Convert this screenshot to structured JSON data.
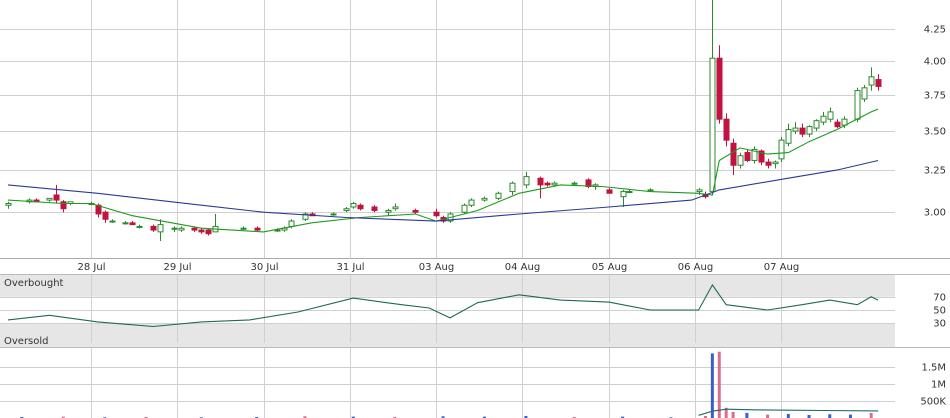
{
  "chart_data": [
    {
      "type": "candlestick",
      "x": [
        0,
        3,
        4,
        6,
        7,
        8,
        9,
        12,
        13,
        14,
        15,
        17,
        18,
        19,
        21,
        22,
        24,
        25,
        27,
        28,
        29,
        30,
        34,
        36,
        39,
        40,
        41,
        43,
        44,
        47,
        49,
        50,
        51,
        53,
        55,
        56,
        59,
        62,
        63,
        64,
        66,
        67,
        69,
        71,
        73,
        75,
        77,
        78,
        79,
        82,
        84,
        85,
        87,
        89,
        90,
        93,
        100,
        101,
        102,
        103,
        104,
        105,
        106,
        107,
        108,
        109,
        110,
        111,
        112,
        113,
        114,
        115,
        116,
        117,
        118,
        119,
        120,
        121,
        123,
        124,
        125,
        126
      ],
      "open": [
        3.04,
        3.06,
        3.07,
        3.07,
        3.1,
        3.06,
        3.05,
        3.05,
        3.04,
        3.0,
        2.95,
        2.94,
        2.94,
        2.92,
        2.92,
        2.89,
        2.91,
        2.9,
        2.91,
        2.9,
        2.9,
        2.89,
        2.91,
        2.91,
        2.9,
        2.9,
        2.92,
        2.96,
        2.99,
        2.99,
        3.01,
        3.03,
        3.04,
        3.03,
        3.0,
        3.02,
        3.01,
        3.0,
        2.97,
        2.95,
        3.0,
        3.04,
        3.07,
        3.08,
        3.12,
        3.16,
        3.2,
        3.17,
        3.16,
        3.17,
        3.19,
        3.15,
        3.13,
        3.09,
        3.12,
        3.13,
        3.12,
        3.1,
        3.12,
        4.02,
        3.58,
        3.42,
        3.28,
        3.36,
        3.31,
        3.37,
        3.3,
        3.29,
        3.32,
        3.42,
        3.5,
        3.52,
        3.48,
        3.52,
        3.56,
        3.58,
        3.56,
        3.54,
        3.58,
        3.72,
        3.82,
        3.86
      ],
      "high": [
        3.06,
        3.08,
        3.08,
        3.08,
        3.16,
        3.07,
        3.06,
        3.06,
        3.05,
        3.01,
        2.96,
        2.95,
        2.95,
        2.93,
        2.93,
        2.96,
        2.92,
        2.92,
        2.92,
        2.91,
        2.91,
        2.99,
        2.92,
        2.92,
        2.91,
        2.92,
        2.96,
        3.0,
        3.0,
        3.0,
        3.03,
        3.06,
        3.05,
        3.04,
        3.02,
        3.05,
        3.02,
        3.02,
        2.98,
        3.0,
        3.05,
        3.08,
        3.09,
        3.12,
        3.18,
        3.24,
        3.21,
        3.18,
        3.18,
        3.18,
        3.2,
        3.17,
        3.14,
        3.13,
        3.13,
        3.14,
        3.14,
        3.12,
        4.55,
        4.12,
        3.62,
        3.45,
        3.36,
        3.38,
        3.4,
        3.38,
        3.32,
        3.31,
        3.46,
        3.55,
        3.56,
        3.55,
        3.54,
        3.58,
        3.63,
        3.66,
        3.58,
        3.6,
        3.8,
        3.82,
        3.95,
        3.9
      ],
      "low": [
        3.02,
        3.05,
        3.06,
        3.06,
        3.05,
        3.0,
        3.04,
        3.04,
        2.97,
        2.94,
        2.94,
        2.93,
        2.93,
        2.91,
        2.89,
        2.84,
        2.89,
        2.89,
        2.89,
        2.88,
        2.87,
        2.89,
        2.9,
        2.89,
        2.89,
        2.89,
        2.91,
        2.95,
        2.98,
        2.98,
        3.0,
        3.02,
        3.01,
        3.0,
        2.98,
        3.01,
        2.99,
        2.97,
        2.94,
        2.94,
        2.99,
        3.03,
        3.06,
        3.07,
        3.1,
        3.14,
        3.08,
        3.15,
        3.15,
        3.16,
        3.14,
        3.13,
        3.11,
        3.03,
        3.11,
        3.12,
        3.1,
        3.08,
        3.1,
        3.55,
        3.4,
        3.22,
        3.26,
        3.3,
        3.29,
        3.28,
        3.26,
        3.26,
        3.3,
        3.4,
        3.48,
        3.46,
        3.46,
        3.5,
        3.54,
        3.56,
        3.52,
        3.52,
        3.56,
        3.7,
        3.78,
        3.78
      ],
      "close": [
        3.05,
        3.07,
        3.06,
        3.08,
        3.07,
        3.02,
        3.06,
        3.05,
        2.99,
        2.96,
        2.95,
        2.94,
        2.93,
        2.92,
        2.9,
        2.93,
        2.91,
        2.91,
        2.9,
        2.89,
        2.88,
        2.92,
        2.91,
        2.9,
        2.9,
        2.91,
        2.95,
        2.99,
        2.98,
        2.99,
        3.02,
        3.05,
        3.02,
        3.01,
        3.01,
        3.03,
        3.0,
        2.98,
        2.95,
        2.99,
        3.04,
        3.07,
        3.08,
        3.11,
        3.17,
        3.21,
        3.16,
        3.16,
        3.17,
        3.17,
        3.15,
        3.16,
        3.11,
        3.12,
        3.12,
        3.13,
        3.13,
        3.09,
        4.02,
        3.58,
        3.44,
        3.28,
        3.34,
        3.31,
        3.38,
        3.3,
        3.28,
        3.3,
        3.44,
        3.51,
        3.52,
        3.48,
        3.53,
        3.57,
        3.6,
        3.63,
        3.53,
        3.58,
        3.78,
        3.8,
        3.88,
        3.81
      ],
      "up_color": "#2b8a2b",
      "down_color": "#c2123f",
      "overlays": [
        {
          "type": "line",
          "color": "#1e9a1e",
          "x": [
            0,
            8,
            12,
            18,
            28,
            37,
            44,
            51,
            59,
            62,
            68,
            74,
            80,
            86,
            93,
            100,
            102,
            103,
            106,
            110,
            113,
            116,
            120,
            125,
            126
          ],
          "values": [
            3.07,
            3.05,
            3.05,
            2.98,
            2.91,
            2.89,
            2.94,
            2.97,
            2.99,
            2.95,
            3.01,
            3.11,
            3.16,
            3.15,
            3.12,
            3.11,
            3.1,
            3.31,
            3.39,
            3.35,
            3.36,
            3.43,
            3.51,
            3.63,
            3.65
          ]
        },
        {
          "type": "line",
          "color": "#2b3a98",
          "x": [
            0,
            13,
            28,
            37,
            49,
            62,
            74,
            87,
            99,
            103,
            113,
            120,
            126
          ],
          "values": [
            3.16,
            3.11,
            3.04,
            3.0,
            2.97,
            2.95,
            2.99,
            3.03,
            3.07,
            3.13,
            3.2,
            3.25,
            3.31
          ]
        }
      ],
      "xlim": [
        0,
        127
      ],
      "xticks": [
        {
          "value": 12,
          "label": "28 Jul"
        },
        {
          "value": 24.5,
          "label": "29 Jul"
        },
        {
          "value": 37,
          "label": "30 Jul"
        },
        {
          "value": 49.5,
          "label": "31 Jul"
        },
        {
          "value": 62,
          "label": "03 Aug"
        },
        {
          "value": 74.5,
          "label": "04 Aug"
        },
        {
          "value": 87,
          "label": "05 Aug"
        },
        {
          "value": 99.5,
          "label": "06 Aug"
        },
        {
          "value": 112,
          "label": "07 Aug"
        }
      ],
      "ylim": [
        2.75,
        4.49
      ],
      "log": true,
      "grid": true,
      "yticks": [
        {
          "value": 3,
          "label": "3.00"
        },
        3.25,
        {
          "value": 3.5,
          "label": "3.50"
        },
        3.75,
        {
          "value": 4,
          "label": "4.00"
        },
        4.25
      ]
    },
    {
      "type": "line",
      "overbought_label": "Overbought",
      "oversold_label": "Oversold",
      "overbought": 70,
      "oversold": 30,
      "band_color": "#e6e6e6",
      "color": "#1d6b4c",
      "x": [
        0,
        6,
        13,
        21,
        28,
        35,
        42,
        50,
        57,
        61,
        64,
        68,
        74,
        80,
        87,
        93,
        100,
        102,
        104,
        110,
        115,
        119,
        123,
        125,
        126
      ],
      "values": [
        35,
        42,
        32,
        25,
        32,
        35,
        47,
        68,
        58,
        53,
        38,
        61,
        73,
        65,
        62,
        50,
        50,
        88,
        58,
        50,
        58,
        65,
        58,
        70,
        65
      ],
      "xlim": [
        0,
        127
      ],
      "ylim": [
        0,
        100
      ],
      "yticks": [
        70,
        50,
        30
      ]
    },
    {
      "type": "bar",
      "x": [
        2,
        8,
        14,
        20,
        28,
        36,
        43,
        50,
        56,
        63,
        69,
        75,
        82,
        89,
        96,
        101,
        102,
        103,
        104,
        105,
        107,
        110,
        113,
        116,
        119,
        122,
        125
      ],
      "values": [
        30000,
        40000,
        20000,
        30000,
        20000,
        30000,
        50000,
        40000,
        30000,
        50000,
        40000,
        60000,
        30000,
        40000,
        20000,
        60000,
        1900000,
        1950000,
        300000,
        180000,
        150000,
        100000,
        120000,
        90000,
        110000,
        100000,
        150000
      ],
      "colors": [
        "#3a5fc8",
        "#d9708a",
        "#3a5fc8",
        "#d9708a",
        "#3a5fc8",
        "#3a5fc8",
        "#d9708a",
        "#3a5fc8",
        "#d9708a",
        "#3a5fc8",
        "#3a5fc8",
        "#3a5fc8",
        "#d9708a",
        "#3a5fc8",
        "#3a5fc8",
        "#d9708a",
        "#3a5fc8",
        "#d9708a",
        "#d9708a",
        "#d9708a",
        "#3a5fc8",
        "#d9708a",
        "#3a5fc8",
        "#3a5fc8",
        "#3a5fc8",
        "#3a5fc8",
        "#d9708a"
      ],
      "overlays": [
        {
          "type": "line",
          "color": "#1d6b6b",
          "x": [
            100,
            102,
            104,
            108,
            113,
            118,
            126
          ],
          "values": [
            80000,
            200000,
            260000,
            240000,
            230000,
            220000,
            210000
          ]
        }
      ],
      "xlim": [
        0,
        127
      ],
      "ylim": [
        0,
        2000000
      ],
      "yticks": [
        {
          "value": 1500000,
          "label": "1.5M"
        },
        {
          "value": 1000000,
          "label": "1M"
        },
        {
          "value": 500000,
          "label": "500K"
        }
      ]
    }
  ]
}
